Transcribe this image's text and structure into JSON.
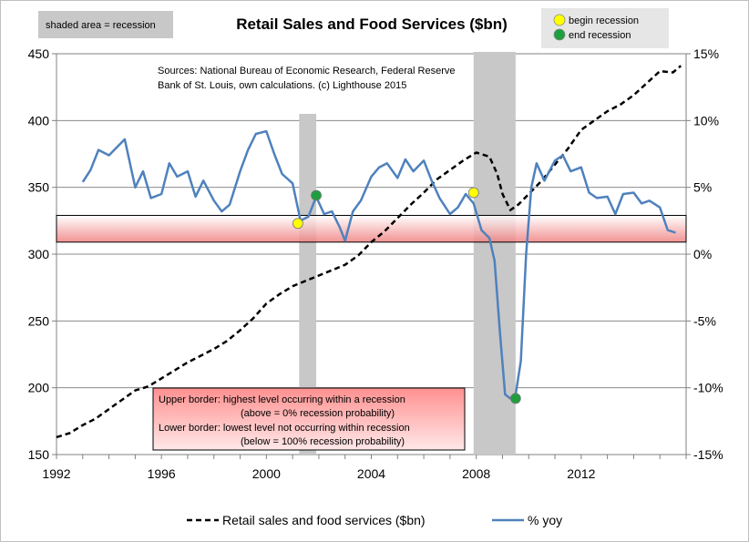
{
  "chart_data": {
    "type": "line",
    "title": "Retail Sales and Food Services ($bn)",
    "source_note": [
      "Sources: National Bureau of Economic Research, Federal Reserve",
      "Bank of St. Louis, own calculations. (c) Lighthouse 2015"
    ],
    "shading_legend": "shaded area = recession",
    "marker_legend": [
      {
        "label": "begin recession",
        "color": "#ffff00"
      },
      {
        "label": "end recession",
        "color": "#1e9e3e"
      }
    ],
    "x_ticks": [
      "1992",
      "1996",
      "2000",
      "2004",
      "2008",
      "2012"
    ],
    "x_tick_values": [
      1992,
      1996,
      2000,
      2004,
      2008,
      2012
    ],
    "xlim": [
      1992,
      2016
    ],
    "y_left_ticks": [
      "150",
      "200",
      "250",
      "300",
      "350",
      "400",
      "450"
    ],
    "y_left_values": [
      150,
      200,
      250,
      300,
      350,
      400,
      450
    ],
    "ylim_left": [
      150,
      450
    ],
    "y_right_ticks": [
      "-15%",
      "-10%",
      "-5%",
      "0%",
      "5%",
      "10%",
      "15%"
    ],
    "y_right_values": [
      -15,
      -10,
      -5,
      0,
      5,
      10,
      15
    ],
    "ylim_right": [
      -15,
      15
    ],
    "recessions": [
      {
        "start": 2001.25,
        "end": 2001.9
      },
      {
        "start": 2007.9,
        "end": 2009.5
      }
    ],
    "band": {
      "low_pct": 0.9,
      "high_pct": 2.9
    },
    "band_note": [
      "Upper border: highest level occurring within a recession",
      "(above = 0% recession probability)",
      "Lower border: lowest level not occurring within recession",
      "(below = 100% recession probability)"
    ],
    "series": [
      {
        "name": "Retail sales and food services ($bn)",
        "axis": "left",
        "color": "#000000",
        "style": "dashed",
        "x": [
          1992.0,
          1992.5,
          1993.0,
          1993.5,
          1994.0,
          1994.5,
          1995.0,
          1995.5,
          1996.0,
          1996.5,
          1997.0,
          1997.5,
          1998.0,
          1998.5,
          1999.0,
          1999.5,
          2000.0,
          2000.5,
          2001.0,
          2001.5,
          2002.0,
          2002.5,
          2003.0,
          2003.5,
          2004.0,
          2004.5,
          2005.0,
          2005.5,
          2006.0,
          2006.5,
          2007.0,
          2007.5,
          2008.0,
          2008.5,
          2008.8,
          2009.0,
          2009.3,
          2009.6,
          2010.0,
          2010.5,
          2011.0,
          2011.5,
          2012.0,
          2012.5,
          2013.0,
          2013.5,
          2014.0,
          2014.5,
          2015.0,
          2015.5,
          2015.8
        ],
        "values": [
          163,
          166,
          172,
          177,
          184,
          191,
          198,
          201,
          207,
          213,
          219,
          224,
          229,
          235,
          243,
          252,
          263,
          270,
          276,
          280,
          284,
          288,
          292,
          299,
          309,
          317,
          327,
          337,
          346,
          356,
          363,
          370,
          376,
          373,
          360,
          345,
          333,
          337,
          345,
          355,
          367,
          379,
          393,
          400,
          407,
          412,
          419,
          428,
          437,
          436,
          441
        ]
      },
      {
        "name": "% yoy",
        "axis": "right",
        "color": "#4f81bd",
        "style": "solid",
        "x": [
          1993.0,
          1993.3,
          1993.6,
          1994.0,
          1994.3,
          1994.6,
          1995.0,
          1995.3,
          1995.6,
          1996.0,
          1996.3,
          1996.6,
          1997.0,
          1997.3,
          1997.6,
          1998.0,
          1998.3,
          1998.6,
          1999.0,
          1999.3,
          1999.6,
          2000.0,
          2000.3,
          2000.6,
          2001.0,
          2001.3,
          2001.6,
          2001.9,
          2002.2,
          2002.5,
          2002.8,
          2003.0,
          2003.3,
          2003.6,
          2004.0,
          2004.3,
          2004.6,
          2005.0,
          2005.3,
          2005.6,
          2006.0,
          2006.3,
          2006.6,
          2007.0,
          2007.3,
          2007.6,
          2007.9,
          2008.2,
          2008.5,
          2008.7,
          2008.9,
          2009.1,
          2009.3,
          2009.5,
          2009.7,
          2009.9,
          2010.1,
          2010.3,
          2010.6,
          2011.0,
          2011.3,
          2011.6,
          2012.0,
          2012.3,
          2012.6,
          2013.0,
          2013.3,
          2013.6,
          2014.0,
          2014.3,
          2014.6,
          2015.0,
          2015.3,
          2015.6
        ],
        "values": [
          5.4,
          6.3,
          7.8,
          7.4,
          8.0,
          8.6,
          5.0,
          6.2,
          4.2,
          4.5,
          6.8,
          5.8,
          6.2,
          4.3,
          5.5,
          4.0,
          3.2,
          3.7,
          6.2,
          7.8,
          9.0,
          9.2,
          7.5,
          6.0,
          5.3,
          2.5,
          2.8,
          4.3,
          3.0,
          3.2,
          2.0,
          1.0,
          3.2,
          4.0,
          5.8,
          6.5,
          6.8,
          5.7,
          7.1,
          6.2,
          7.0,
          5.5,
          4.2,
          3.0,
          3.5,
          4.5,
          3.8,
          1.8,
          1.2,
          -0.5,
          -5.8,
          -10.5,
          -10.8,
          -10.5,
          -8.0,
          0.0,
          5.0,
          6.8,
          5.5,
          7.0,
          7.4,
          6.2,
          6.5,
          4.6,
          4.2,
          4.3,
          3.0,
          4.5,
          4.6,
          3.8,
          4.0,
          3.5,
          1.8,
          1.6
        ]
      }
    ],
    "markers": [
      {
        "type": "begin",
        "x": 2001.2,
        "pct": 2.3
      },
      {
        "type": "end",
        "x": 2001.9,
        "pct": 4.4
      },
      {
        "type": "begin",
        "x": 2007.9,
        "pct": 4.6
      },
      {
        "type": "end",
        "x": 2009.5,
        "pct": -10.8
      }
    ],
    "legend": {
      "placement": "bottom",
      "entries": [
        "Retail sales and food services ($bn)",
        "% yoy"
      ]
    },
    "colors": {
      "recession_shade": "#c8c8c8",
      "band_top": "#ffffff",
      "band_bottom": "#f08080",
      "begin_marker": "#ffff00",
      "end_marker": "#1e9e3e"
    }
  }
}
